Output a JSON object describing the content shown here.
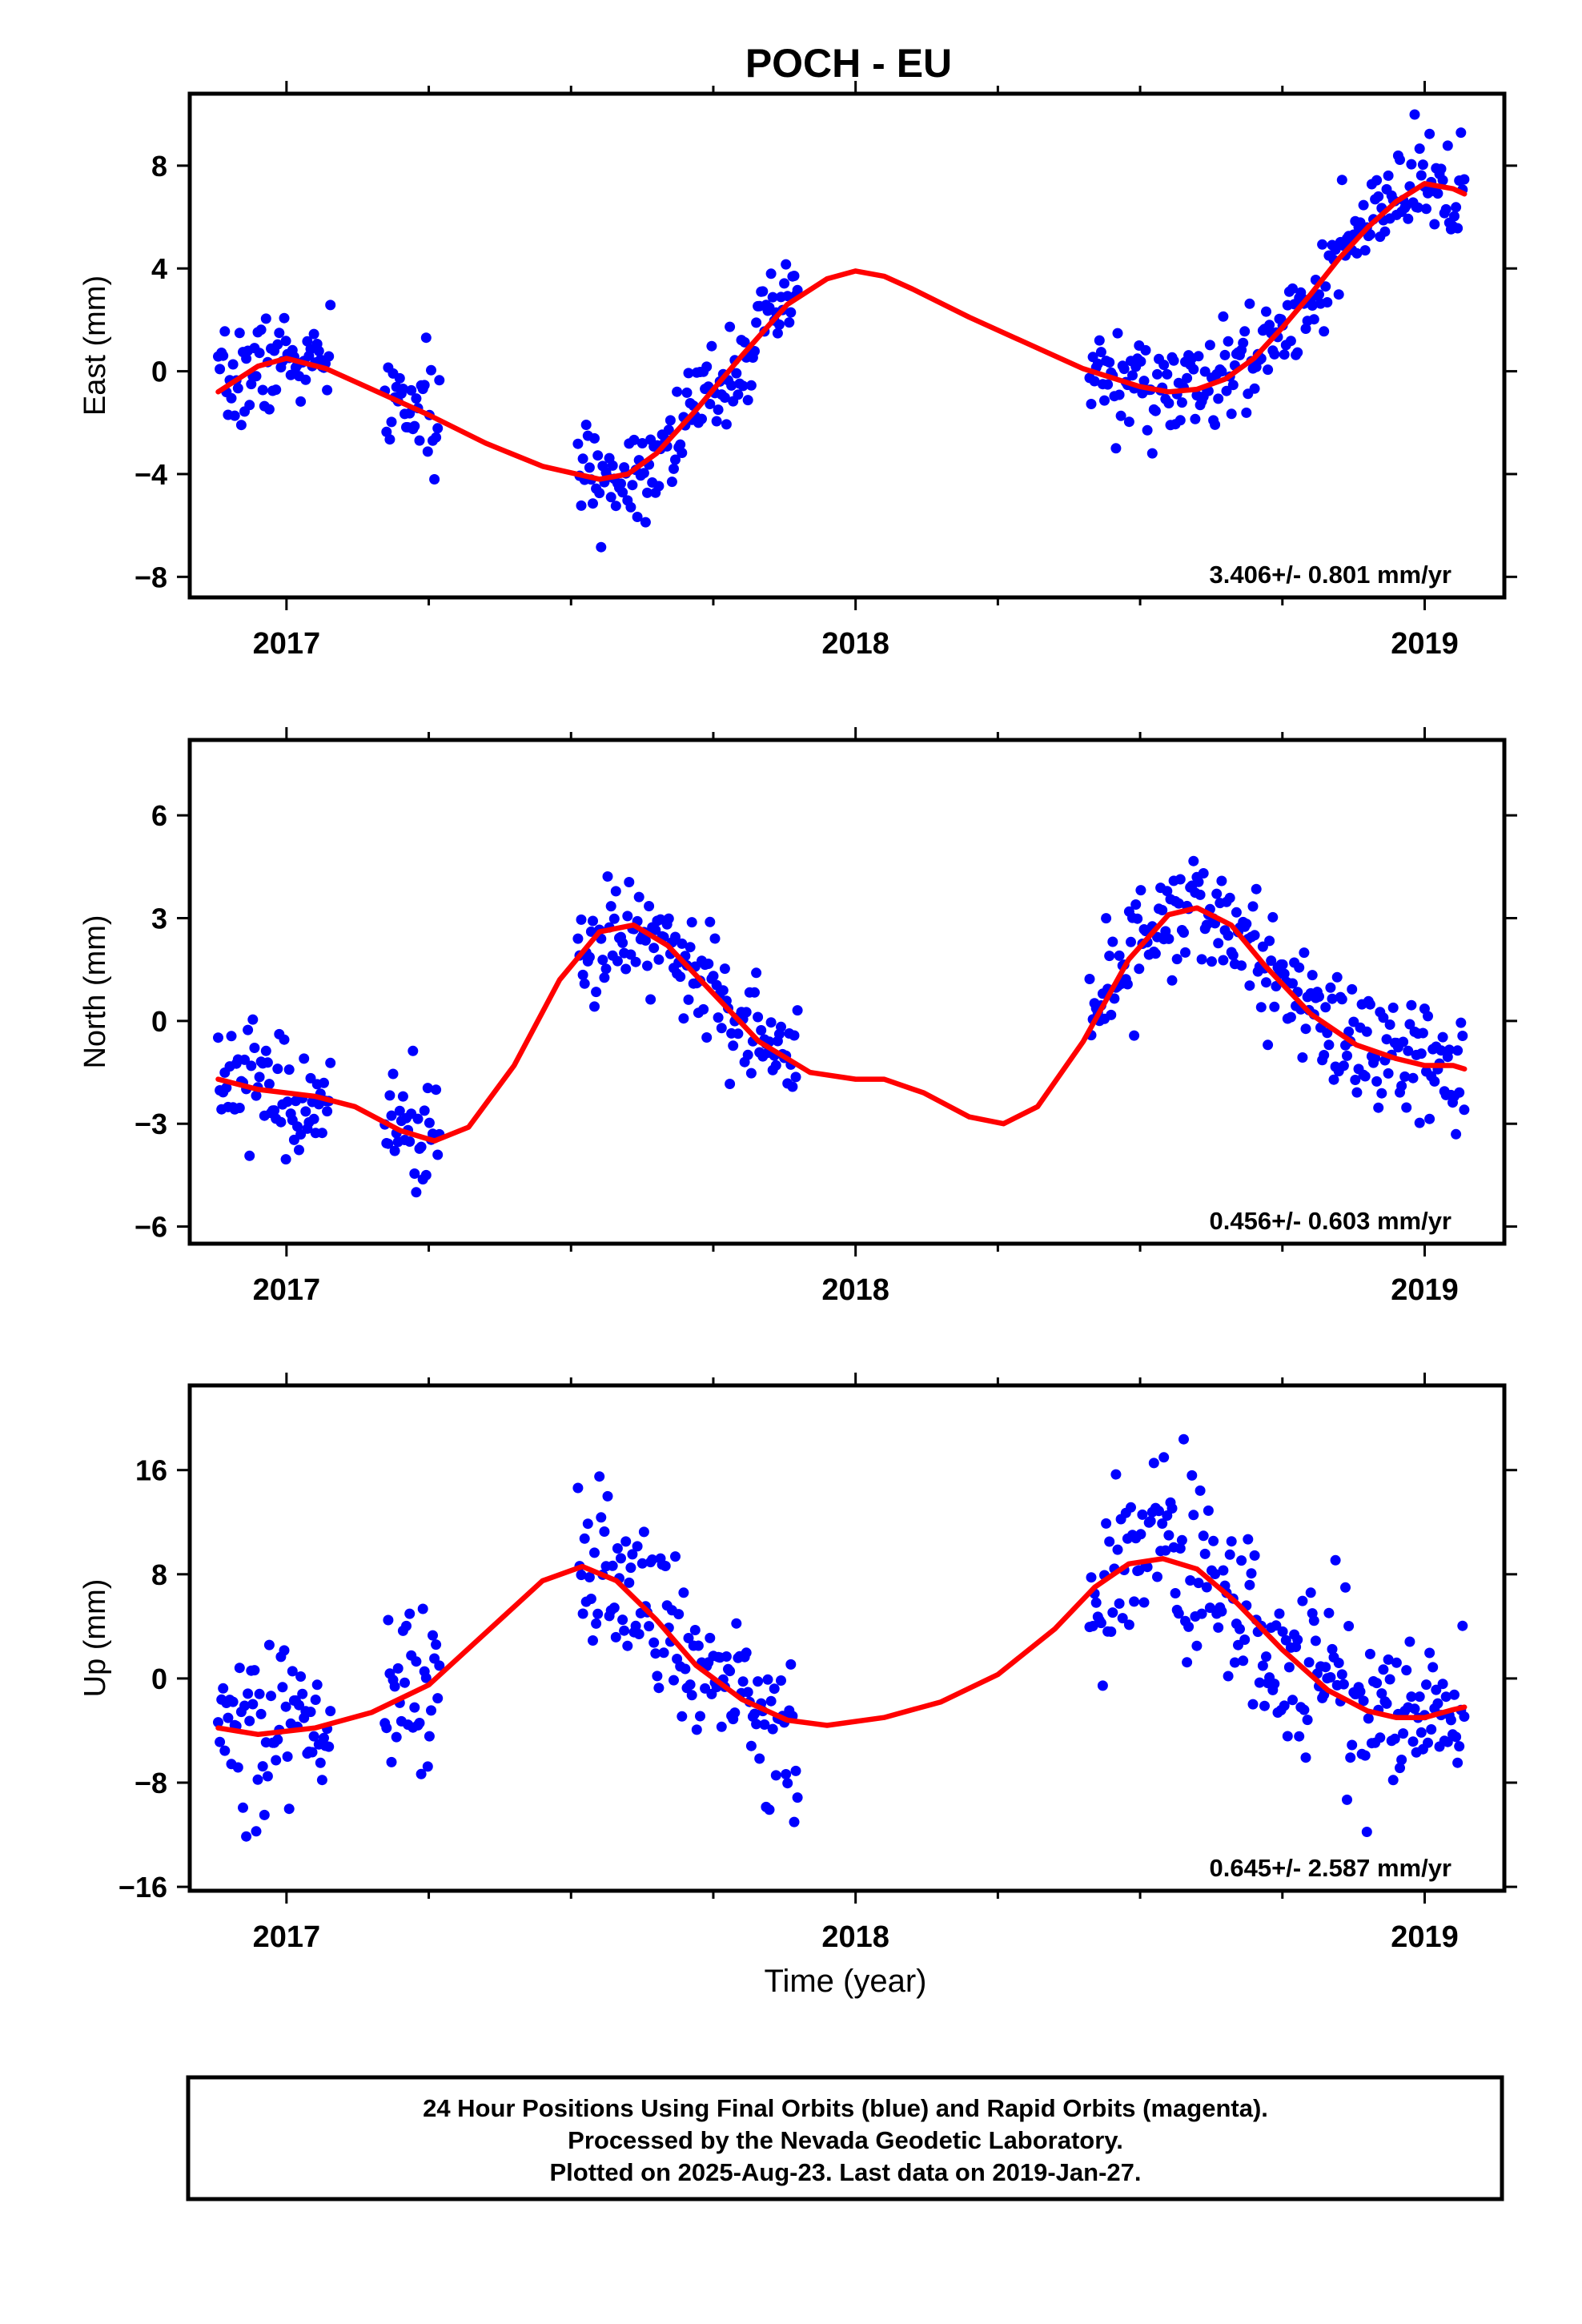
{
  "figure_title": "POCH - EU",
  "x_axis_label": "Time (year)",
  "footer": {
    "line1": "24 Hour Positions Using Final Orbits (blue) and Rapid Orbits (magenta).",
    "line2": "Processed by the Nevada Geodetic Laboratory.",
    "line3": "Plotted on 2025-Aug-23. Last data on 2019-Jan-27."
  },
  "colors": {
    "final_orbits": "#0000ff",
    "model_fit": "#ff0000",
    "axes": "#000000"
  },
  "chart_data": [
    {
      "type": "scatter",
      "title": "",
      "xlabel": "",
      "ylabel": "East (mm)",
      "xlim": [
        2016.83,
        2019.14
      ],
      "ylim": [
        -8.8,
        10.8
      ],
      "xticks": [
        2017,
        2018,
        2019
      ],
      "yticks": [
        -8,
        -4,
        0,
        4,
        8
      ],
      "rate_text": "3.406+/- 0.801 mm/yr",
      "grid": false,
      "series": [
        {
          "kind": "points",
          "color": "#0000ff",
          "gaps": [
            [
              2017.08,
              2017.17
            ],
            [
              2017.27,
              2017.51
            ],
            [
              2017.9,
              2018.41
            ]
          ]
        },
        {
          "kind": "line",
          "color": "#ff0000",
          "x": [
            2016.88,
            2016.95,
            2017.0,
            2017.07,
            2017.15,
            2017.25,
            2017.35,
            2017.45,
            2017.55,
            2017.6,
            2017.65,
            2017.72,
            2017.8,
            2017.88,
            2017.95,
            2018.0,
            2018.05,
            2018.1,
            2018.2,
            2018.3,
            2018.4,
            2018.5,
            2018.55,
            2018.6,
            2018.65,
            2018.7,
            2018.75,
            2018.8,
            2018.85,
            2018.9,
            2018.95,
            2019.0,
            2019.05,
            2019.07
          ],
          "y": [
            -0.8,
            0.2,
            0.5,
            0.1,
            -0.7,
            -1.7,
            -2.8,
            -3.7,
            -4.2,
            -4.0,
            -3.2,
            -1.5,
            0.6,
            2.6,
            3.6,
            3.9,
            3.7,
            3.2,
            2.1,
            1.1,
            0.1,
            -0.6,
            -0.8,
            -0.7,
            -0.3,
            0.5,
            1.7,
            3.0,
            4.4,
            5.6,
            6.6,
            7.3,
            7.1,
            6.9
          ]
        }
      ]
    },
    {
      "type": "scatter",
      "title": "",
      "xlabel": "",
      "ylabel": "North (mm)",
      "xlim": [
        2016.83,
        2019.14
      ],
      "ylim": [
        -6.5,
        8.2
      ],
      "xticks": [
        2017,
        2018,
        2019
      ],
      "yticks": [
        -6,
        -3,
        0,
        3,
        6
      ],
      "rate_text": "0.456+/- 0.603 mm/yr",
      "grid": false,
      "series": [
        {
          "kind": "points",
          "color": "#0000ff",
          "gaps": [
            [
              2017.08,
              2017.17
            ],
            [
              2017.27,
              2017.51
            ],
            [
              2017.9,
              2018.41
            ]
          ]
        },
        {
          "kind": "line",
          "color": "#ff0000",
          "x": [
            2016.88,
            2016.95,
            2017.05,
            2017.12,
            2017.2,
            2017.26,
            2017.32,
            2017.4,
            2017.48,
            2017.55,
            2017.61,
            2017.67,
            2017.75,
            2017.83,
            2017.92,
            2018.0,
            2018.05,
            2018.12,
            2018.2,
            2018.26,
            2018.32,
            2018.4,
            2018.48,
            2018.55,
            2018.6,
            2018.66,
            2018.72,
            2018.8,
            2018.88,
            2018.95,
            2019.0,
            2019.05,
            2019.07
          ],
          "y": [
            -1.7,
            -2.0,
            -2.2,
            -2.5,
            -3.2,
            -3.5,
            -3.1,
            -1.3,
            1.2,
            2.6,
            2.8,
            2.2,
            0.8,
            -0.6,
            -1.5,
            -1.7,
            -1.7,
            -2.1,
            -2.8,
            -3.0,
            -2.5,
            -0.6,
            1.8,
            3.1,
            3.3,
            2.8,
            1.6,
            0.2,
            -0.7,
            -1.1,
            -1.3,
            -1.3,
            -1.4
          ]
        }
      ]
    },
    {
      "type": "scatter",
      "title": "",
      "xlabel": "Time (year)",
      "ylabel": "Up (mm)",
      "xlim": [
        2016.83,
        2019.14
      ],
      "ylim": [
        -16.3,
        22.5
      ],
      "xticks": [
        2017,
        2018,
        2019
      ],
      "yticks": [
        -16,
        -8,
        0,
        8,
        16
      ],
      "rate_text": "0.645+/- 2.587 mm/yr",
      "grid": false,
      "series": [
        {
          "kind": "points",
          "color": "#0000ff",
          "gaps": [
            [
              2017.08,
              2017.17
            ],
            [
              2017.27,
              2017.51
            ],
            [
              2017.9,
              2018.41
            ]
          ]
        },
        {
          "kind": "line",
          "color": "#ff0000",
          "x": [
            2016.88,
            2016.95,
            2017.05,
            2017.15,
            2017.25,
            2017.35,
            2017.45,
            2017.52,
            2017.58,
            2017.65,
            2017.72,
            2017.8,
            2017.88,
            2017.95,
            2018.05,
            2018.15,
            2018.25,
            2018.35,
            2018.42,
            2018.48,
            2018.54,
            2018.6,
            2018.67,
            2018.75,
            2018.83,
            2018.9,
            2018.95,
            2019.0,
            2019.05,
            2019.07
          ],
          "y": [
            -3.8,
            -4.3,
            -3.8,
            -2.6,
            -0.5,
            3.5,
            7.5,
            8.6,
            7.5,
            4.5,
            1.0,
            -1.6,
            -3.2,
            -3.6,
            -3.0,
            -1.8,
            0.3,
            3.8,
            7.0,
            8.8,
            9.2,
            8.4,
            5.8,
            2.2,
            -0.9,
            -2.5,
            -3.0,
            -3.0,
            -2.4,
            -2.2
          ]
        }
      ]
    }
  ]
}
